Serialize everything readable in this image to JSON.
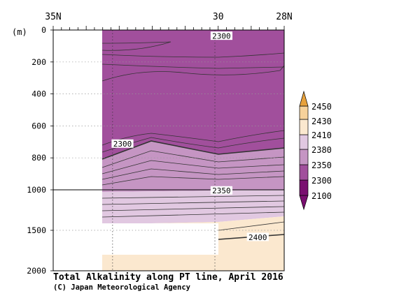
{
  "chart_data": {
    "type": "contour",
    "title": "Total Alkalinity along PT line, April 2016",
    "credit": "(C) Japan Meteorological Agency",
    "x_axis": {
      "direction": "north-to-south",
      "range_lat": [
        35,
        28
      ],
      "tick_labels": [
        {
          "lat": 35,
          "label": "35N"
        },
        {
          "lat": 30,
          "label": "30"
        },
        {
          "lat": 28,
          "label": "28N"
        }
      ]
    },
    "y_axis": {
      "unit_label": "(m)",
      "range": [
        0,
        2000
      ],
      "tick_labels": [
        {
          "depth": 0,
          "label": "0"
        },
        {
          "depth": 200,
          "label": "200"
        },
        {
          "depth": 400,
          "label": "400"
        },
        {
          "depth": 600,
          "label": "600"
        },
        {
          "depth": 800,
          "label": "800"
        },
        {
          "depth": 1000,
          "label": "1000"
        },
        {
          "depth": 1500,
          "label": "1500"
        },
        {
          "depth": 2000,
          "label": "2000"
        }
      ]
    },
    "stations_lat": [
      33.2,
      30.1
    ],
    "colorbar": {
      "levels": [
        2100,
        2300,
        2350,
        2380,
        2410,
        2430,
        2450
      ],
      "labels": [
        "2450",
        "2430",
        "2410",
        "2380",
        "2350",
        "2300",
        "2100"
      ],
      "colors": [
        "#7a0f70",
        "#a14f9c",
        "#c595c3",
        "#e1c8e1",
        "#fbe8cf",
        "#f7d29b",
        "#e7a13c"
      ]
    },
    "contour_labels": [
      {
        "text": "2300",
        "lat": 29.9,
        "depth": 40
      },
      {
        "text": "2300",
        "lat": 32.9,
        "depth": 715
      },
      {
        "text": "2350",
        "lat": 29.9,
        "depth": 1015
      },
      {
        "text": "2400",
        "lat": 28.8,
        "depth": 1590
      }
    ],
    "bands": [
      {
        "name": "2100-2300",
        "color": "#a14f9c"
      },
      {
        "name": "2300-2350",
        "color": "#c595c3"
      },
      {
        "name": "2350-2380",
        "color": "#e1c8e1"
      },
      {
        "name": "2380-2410",
        "color": "#fbe8cf"
      }
    ]
  }
}
